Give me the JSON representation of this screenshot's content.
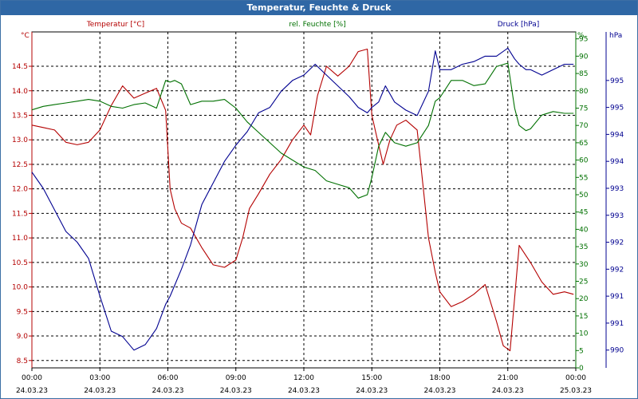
{
  "window": {
    "title": "Temperatur, Feuchte & Druck"
  },
  "chart_data": {
    "type": "line",
    "title": "Temperatur, Feuchte & Druck",
    "grid": true,
    "x_ticks": [
      {
        "time": "00:00",
        "date": "24.03.23"
      },
      {
        "time": "03:00",
        "date": "24.03.23"
      },
      {
        "time": "06:00",
        "date": "24.03.23"
      },
      {
        "time": "09:00",
        "date": "24.03.23"
      },
      {
        "time": "12:00",
        "date": "24.03.23"
      },
      {
        "time": "15:00",
        "date": "24.03.23"
      },
      {
        "time": "18:00",
        "date": "24.03.23"
      },
      {
        "time": "21:00",
        "date": "24.03.23"
      },
      {
        "time": "00:00",
        "date": "25.03.23"
      }
    ],
    "x_range_hours": [
      0,
      24
    ],
    "axes": {
      "temperature": {
        "label": "Temperatur [°C]",
        "unit": "°C",
        "color": "#b40000",
        "side": "left",
        "range": [
          8.35,
          15.2
        ],
        "ticks": [
          "8.5",
          "9.0",
          "9.5",
          "10.0",
          "10.5",
          "11.0",
          "11.5",
          "12.0",
          "12.5",
          "13.0",
          "13.5",
          "14.0",
          "14.5"
        ]
      },
      "humidity": {
        "label": "rel. Feuchte [%]",
        "unit": "%",
        "color": "#007000",
        "side": "right-inner",
        "range": [
          0,
          97
        ],
        "ticks": [
          "0",
          "5",
          "10",
          "15",
          "20",
          "25",
          "30",
          "35",
          "40",
          "45",
          "50",
          "55",
          "60",
          "65",
          "70",
          "75",
          "80",
          "85",
          "90",
          "95"
        ]
      },
      "pressure": {
        "label": "Druck [hPa]",
        "unit": "hPa",
        "color": "#000090",
        "side": "right-outer",
        "range": [
          989.67,
          995.9
        ],
        "ticks": [
          "990",
          "991",
          "991",
          "992",
          "992",
          "993",
          "993",
          "994",
          "994",
          "995",
          "995"
        ]
      }
    },
    "series": [
      {
        "name": "Temperatur [°C]",
        "axis": "temperature",
        "color": "#b40000",
        "x": [
          0,
          0.5,
          1,
          1.5,
          2,
          2.5,
          3,
          3.5,
          4,
          4.5,
          5,
          5.5,
          5.9,
          6.1,
          6.3,
          6.6,
          7,
          7.5,
          8,
          8.5,
          9,
          9.3,
          9.6,
          10,
          10.5,
          11,
          11.5,
          12,
          12.3,
          12.6,
          13,
          13.5,
          14,
          14.4,
          14.8,
          15,
          15.2,
          15.5,
          15.8,
          16.1,
          16.5,
          17,
          17.5,
          17.8,
          18,
          18.5,
          19,
          19.5,
          20,
          20.5,
          20.8,
          21.1,
          21.5,
          22,
          22.5,
          23,
          23.5,
          23.9
        ],
        "values": [
          13.3,
          13.25,
          13.2,
          12.95,
          12.9,
          12.95,
          13.2,
          13.7,
          14.1,
          13.85,
          13.95,
          14.05,
          13.6,
          12.0,
          11.6,
          11.3,
          11.2,
          10.8,
          10.45,
          10.4,
          10.55,
          11.0,
          11.6,
          11.9,
          12.3,
          12.6,
          13.0,
          13.3,
          13.1,
          13.9,
          14.5,
          14.3,
          14.5,
          14.8,
          14.85,
          13.5,
          13.1,
          12.5,
          13.0,
          13.3,
          13.4,
          13.2,
          11.0,
          10.3,
          9.9,
          9.6,
          9.7,
          9.85,
          10.05,
          9.3,
          8.8,
          8.7,
          10.85,
          10.5,
          10.1,
          9.85,
          9.9,
          9.85
        ]
      },
      {
        "name": "rel. Feuchte [%]",
        "axis": "humidity",
        "color": "#007000",
        "x": [
          0,
          0.5,
          1,
          1.5,
          2,
          2.5,
          3,
          3.5,
          4,
          4.5,
          5,
          5.5,
          5.9,
          6.1,
          6.3,
          6.6,
          7,
          7.5,
          8,
          8.5,
          9,
          9.5,
          10,
          10.5,
          11,
          11.5,
          12,
          12.5,
          13,
          13.5,
          14,
          14.4,
          14.8,
          15,
          15.3,
          15.6,
          16,
          16.5,
          17,
          17.5,
          17.8,
          18,
          18.5,
          19,
          19.5,
          20,
          20.5,
          21,
          21.3,
          21.5,
          21.8,
          22,
          22.5,
          23,
          23.5,
          23.9
        ],
        "values": [
          74.5,
          75.5,
          76,
          76.5,
          77,
          77.5,
          77,
          75.5,
          75,
          76,
          76.5,
          75,
          83,
          82.5,
          83,
          82,
          76,
          77,
          77,
          77.5,
          75,
          71,
          68,
          65,
          62,
          60,
          58,
          57,
          54,
          53,
          52,
          49,
          50,
          55,
          64,
          68,
          65,
          64,
          65,
          70,
          77,
          78,
          83,
          83,
          81.5,
          82,
          87,
          88,
          75,
          70,
          68.5,
          69,
          73,
          74,
          73.5,
          73.5
        ]
      },
      {
        "name": "Druck [hPa]",
        "axis": "pressure",
        "color": "#000090",
        "x": [
          0,
          0.5,
          1,
          1.5,
          2,
          2.5,
          3,
          3.5,
          4,
          4.5,
          5,
          5.5,
          5.9,
          6.1,
          6.3,
          6.6,
          7,
          7.5,
          8,
          8.5,
          9,
          9.5,
          10,
          10.5,
          11,
          11.5,
          12,
          12.5,
          13,
          13.5,
          14,
          14.4,
          14.8,
          15,
          15.3,
          15.6,
          16,
          16.5,
          17,
          17.5,
          17.8,
          18,
          18.5,
          19,
          19.5,
          20,
          20.5,
          21,
          21.3,
          21.5,
          21.8,
          22,
          22.5,
          23,
          23.5,
          23.9
        ],
        "values": [
          993.3,
          993.0,
          992.6,
          992.2,
          992.0,
          991.7,
          991.0,
          990.35,
          990.25,
          990.0,
          990.1,
          990.4,
          990.85,
          991.0,
          991.2,
          991.5,
          991.95,
          992.7,
          993.1,
          993.5,
          993.8,
          994.05,
          994.4,
          994.5,
          994.8,
          995.0,
          995.1,
          995.3,
          995.1,
          994.9,
          994.7,
          994.5,
          994.4,
          994.5,
          994.6,
          994.9,
          994.6,
          994.45,
          994.35,
          994.8,
          995.55,
          995.2,
          995.2,
          995.3,
          995.35,
          995.45,
          995.45,
          995.6,
          995.4,
          995.3,
          995.2,
          995.2,
          995.1,
          995.2,
          995.3,
          995.3
        ]
      }
    ]
  }
}
